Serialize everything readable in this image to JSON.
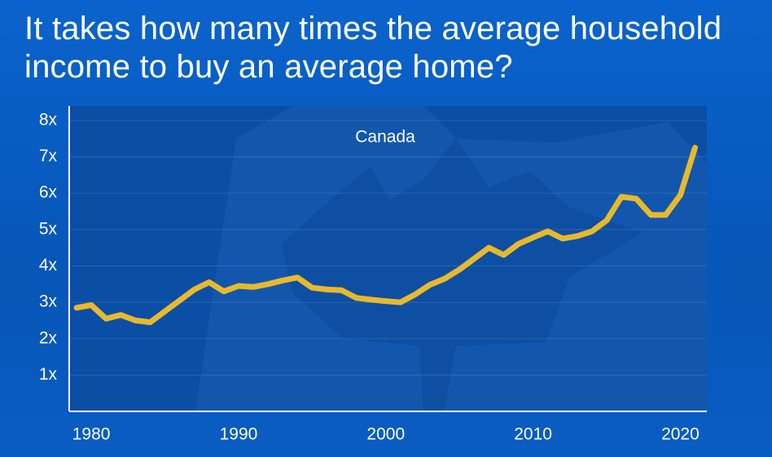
{
  "chart_data": {
    "type": "line",
    "title": "It takes how many times the average household income to buy an average home?",
    "x": [
      1979,
      1980,
      1981,
      1982,
      1983,
      1984,
      1985,
      1986,
      1987,
      1988,
      1989,
      1990,
      1991,
      1992,
      1993,
      1994,
      1995,
      1996,
      1997,
      1998,
      1999,
      2000,
      2001,
      2002,
      2003,
      2004,
      2005,
      2006,
      2007,
      2008,
      2009,
      2010,
      2011,
      2012,
      2013,
      2014,
      2015,
      2016,
      2017,
      2018,
      2019,
      2020,
      2021
    ],
    "series": [
      {
        "name": "Canada",
        "color": "#e8b92c",
        "values": [
          2.85,
          2.92,
          2.55,
          2.65,
          2.5,
          2.45,
          2.75,
          3.05,
          3.35,
          3.55,
          3.3,
          3.45,
          3.42,
          3.5,
          3.6,
          3.68,
          3.4,
          3.35,
          3.33,
          3.12,
          3.07,
          3.03,
          3.0,
          3.22,
          3.48,
          3.65,
          3.9,
          4.2,
          4.5,
          4.3,
          4.6,
          4.78,
          4.95,
          4.75,
          4.82,
          4.95,
          5.25,
          5.9,
          5.85,
          5.4,
          5.4,
          5.95,
          7.25
        ]
      }
    ],
    "xlim": [
      1978.5,
      2021.8
    ],
    "xticks": [
      1980,
      1990,
      2000,
      2010,
      2020
    ],
    "ylim": [
      0,
      8.4
    ],
    "yticks": [
      {
        "value": 1,
        "label": "1x"
      },
      {
        "value": 2,
        "label": "2x"
      },
      {
        "value": 3,
        "label": "3x"
      },
      {
        "value": 4,
        "label": "4x"
      },
      {
        "value": 5,
        "label": "5x"
      },
      {
        "value": 6,
        "label": "6x"
      },
      {
        "value": 7,
        "label": "7x"
      },
      {
        "value": 8,
        "label": "8x"
      }
    ],
    "grid": true
  }
}
